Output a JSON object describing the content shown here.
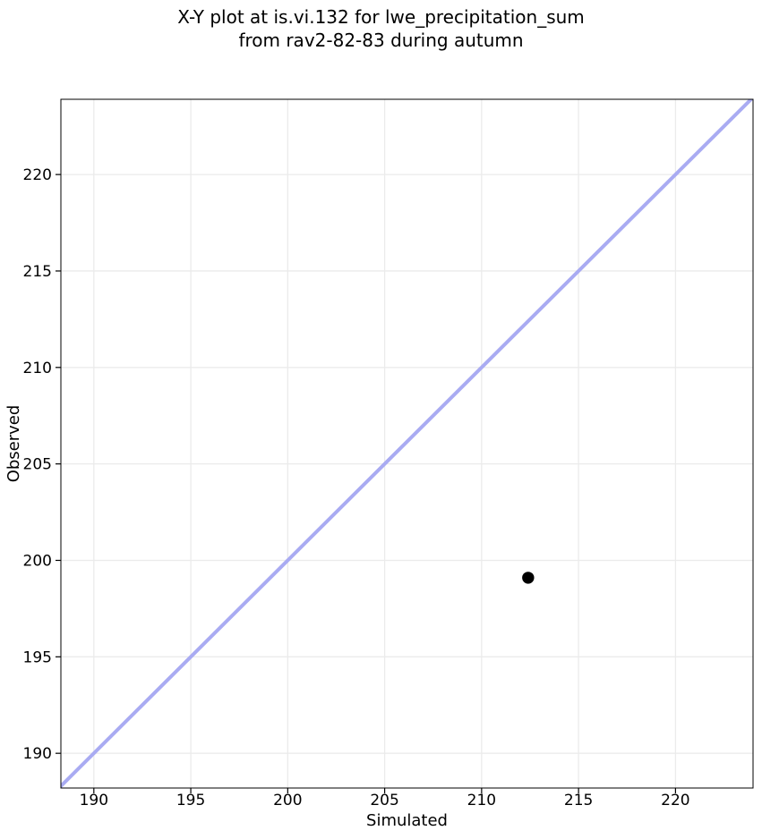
{
  "chart_data": {
    "type": "scatter",
    "title": "X-Y plot at is.vi.132 for lwe_precipitation_sum\nfrom rav2-82-83 during autumn",
    "title_lines": [
      "X-Y plot at is.vi.132 for lwe_precipitation_sum",
      "from rav2-82-83 during autumn"
    ],
    "xlabel": "Simulated",
    "ylabel": "Observed",
    "xlim": [
      188.3,
      224.0
    ],
    "ylim": [
      188.2,
      223.9
    ],
    "xticks": [
      190,
      195,
      200,
      205,
      210,
      215,
      220
    ],
    "yticks": [
      190,
      195,
      200,
      205,
      210,
      215,
      220
    ],
    "grid": true,
    "grid_color": "#ebebeb",
    "axes_color": "#000000",
    "background_color": "#ffffff",
    "series": [
      {
        "name": "observed-vs-simulated-points",
        "type": "scatter",
        "marker": "circle",
        "color": "#000000",
        "marker_radius": 6.7,
        "points": [
          {
            "x": 212.4,
            "y": 199.1
          }
        ]
      }
    ],
    "identity_line": {
      "equation": "y = x",
      "color": "#a9abf2",
      "width": 4
    }
  }
}
